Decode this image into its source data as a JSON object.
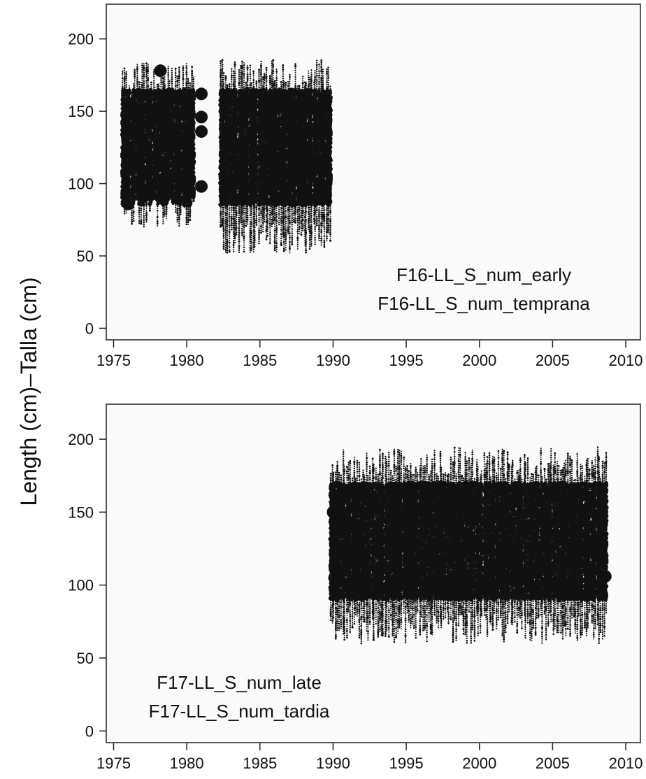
{
  "ylabel": "Length (cm)–Talla (cm)",
  "chart_data": [
    {
      "type": "scatter",
      "panel": "top",
      "labels": [
        "F16-LL_S_num_early",
        "F16-LL_S_num_temprana"
      ],
      "label_position": "bottom-right",
      "xlim": [
        1974.5,
        2011
      ],
      "ylim": [
        -8,
        224
      ],
      "xticks": [
        1975,
        1980,
        1985,
        1990,
        1995,
        2000,
        2005,
        2010
      ],
      "yticks": [
        0,
        50,
        100,
        150,
        200
      ],
      "segments": [
        {
          "x_start": 1975.6,
          "x_end": 1980.5,
          "length_min": 70,
          "length_max": 185,
          "dense_min": 85,
          "dense_max": 165
        },
        {
          "x_start": 1982.3,
          "x_end": 1989.8,
          "length_min": 52,
          "length_max": 186,
          "dense_min": 85,
          "dense_max": 165
        }
      ],
      "large_points": [
        {
          "x": 1981.0,
          "y": 162
        },
        {
          "x": 1981.0,
          "y": 146
        },
        {
          "x": 1981.0,
          "y": 136
        },
        {
          "x": 1981.0,
          "y": 98
        },
        {
          "x": 1976.0,
          "y": 148
        },
        {
          "x": 1976.0,
          "y": 120
        },
        {
          "x": 1976.0,
          "y": 86
        },
        {
          "x": 1978.2,
          "y": 178
        },
        {
          "x": 1977.5,
          "y": 92
        }
      ]
    },
    {
      "type": "scatter",
      "panel": "bottom",
      "labels": [
        "F17-LL_S_num_late",
        "F17-LL_S_num_tardia"
      ],
      "label_position": "bottom-left",
      "xlim": [
        1974.5,
        2011
      ],
      "ylim": [
        -8,
        224
      ],
      "xticks": [
        1975,
        1980,
        1985,
        1990,
        1995,
        2000,
        2005,
        2010
      ],
      "yticks": [
        0,
        50,
        100,
        150,
        200
      ],
      "segments": [
        {
          "x_start": 1989.8,
          "x_end": 2008.7,
          "length_min": 60,
          "length_max": 195,
          "dense_min": 90,
          "dense_max": 170
        }
      ],
      "large_points": [
        {
          "x": 2008.6,
          "y": 106
        },
        {
          "x": 1990.0,
          "y": 150
        },
        {
          "x": 1990.1,
          "y": 105
        }
      ]
    }
  ]
}
